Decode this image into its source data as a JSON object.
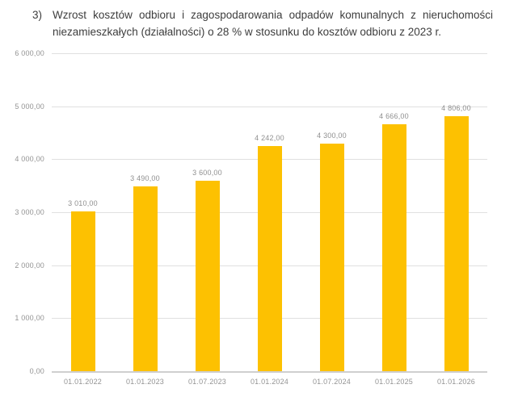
{
  "heading": {
    "number": "3)",
    "text": "Wzrost kosztów odbioru i zagospodarowania odpadów komunalnych z nieruchomości niezamieszkałych (działalności) o 28 % w stosunku do kosztów odbioru z 2023 r."
  },
  "chart_data": {
    "type": "bar",
    "title": "",
    "xlabel": "",
    "ylabel": "",
    "categories": [
      "01.01.2022",
      "01.01.2023",
      "01.07.2023",
      "01.01.2024",
      "01.07.2024",
      "01.01.2025",
      "01.01.2026"
    ],
    "values": [
      3010,
      3490,
      3600,
      4242,
      4300,
      4666,
      4806
    ],
    "value_labels": [
      "3 010,00",
      "3 490,00",
      "3 600,00",
      "4 242,00",
      "4 300,00",
      "4 666,00",
      "4 806,00"
    ],
    "ylim": [
      0,
      6000
    ],
    "y_ticks": [
      0,
      1000,
      2000,
      3000,
      4000,
      5000,
      6000
    ],
    "y_tick_labels": [
      "0,00",
      "1 000,00",
      "2 000,00",
      "3 000,00",
      "4 000,00",
      "5 000,00",
      "6 000,00"
    ],
    "grid": true,
    "legend": "none",
    "bar_color": "#FDC101"
  },
  "colors": {
    "heading_text": "#3d3d3d",
    "axis_label": "#939393",
    "gridline": "#e0e0e0",
    "baseline": "#cfcfcf",
    "bar": "#FDC101",
    "background": "#ffffff"
  }
}
